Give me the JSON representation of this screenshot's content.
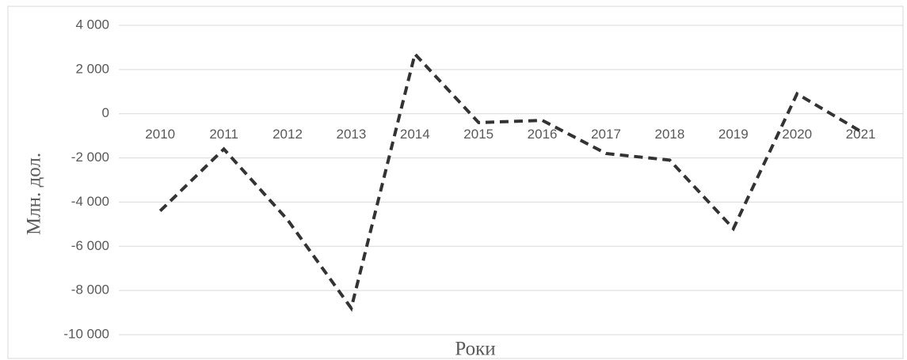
{
  "chart_data": {
    "type": "line",
    "y_label": "Млн. дол.",
    "x_label": "Роки",
    "categories": [
      "2010",
      "2011",
      "2012",
      "2013",
      "2014",
      "2015",
      "2016",
      "2017",
      "2018",
      "2019",
      "2020",
      "2021"
    ],
    "values": [
      -4400,
      -1600,
      -4800,
      -8800,
      2700,
      -400,
      -300,
      -1800,
      -2100,
      -5200,
      900,
      -800
    ],
    "color": "#333333",
    "dashed": true,
    "ylim": [
      -10000,
      4000
    ],
    "yticks": [
      {
        "value": -10000,
        "label": "-10 000"
      },
      {
        "value": -8000,
        "label": "-8 000"
      },
      {
        "value": -6000,
        "label": "-6 000"
      },
      {
        "value": -4000,
        "label": "-4 000"
      },
      {
        "value": -2000,
        "label": "-2 000"
      },
      0,
      {
        "value": 2000,
        "label": "2 000"
      },
      {
        "value": 4000,
        "label": "4 000"
      }
    ],
    "grid": true
  }
}
